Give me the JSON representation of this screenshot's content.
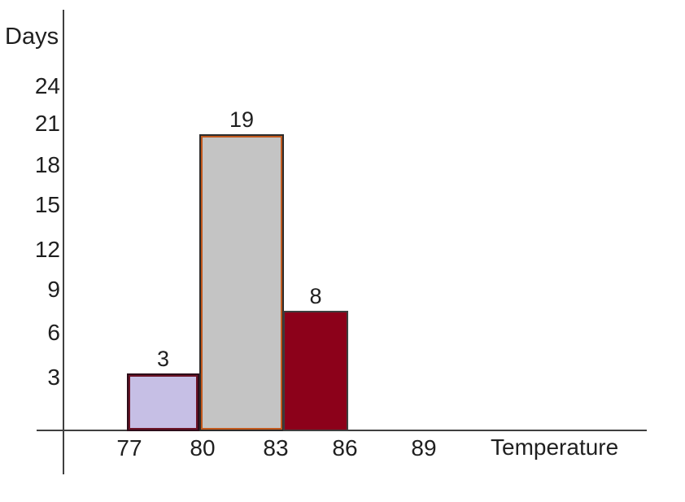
{
  "chart_data": {
    "type": "bar",
    "title": "",
    "ylabel": "Days",
    "xlabel": "Temperature",
    "y_ticks": [
      24,
      21,
      18,
      15,
      12,
      9,
      6,
      3
    ],
    "x_ticks": [
      77,
      80,
      83,
      86,
      89
    ],
    "categories": [
      "77-80",
      "80-83",
      "83-86"
    ],
    "values": [
      3,
      19,
      8
    ],
    "ylim": [
      0,
      26
    ],
    "grid": false,
    "legend_position": "none",
    "axis_color": "#3f3f3f",
    "text_color": "#1f1f1f",
    "bars": [
      {
        "bin_start": 77,
        "bin_end": 80,
        "value": 3,
        "label": "3",
        "fill": "#c6bfe5",
        "border": "#2d0d1a",
        "inner_border": "#6b1326"
      },
      {
        "bin_start": 80,
        "bin_end": 83,
        "value": 19,
        "label": "19",
        "fill": "#c4c4c4",
        "border": "#2c2c2c",
        "inner_border": "#c2591d"
      },
      {
        "bin_start": 83,
        "bin_end": 86,
        "value": 8,
        "label": "8",
        "fill": "#8c011a",
        "border": "#3e3e3e",
        "inner_border": "#8c011a"
      }
    ]
  }
}
